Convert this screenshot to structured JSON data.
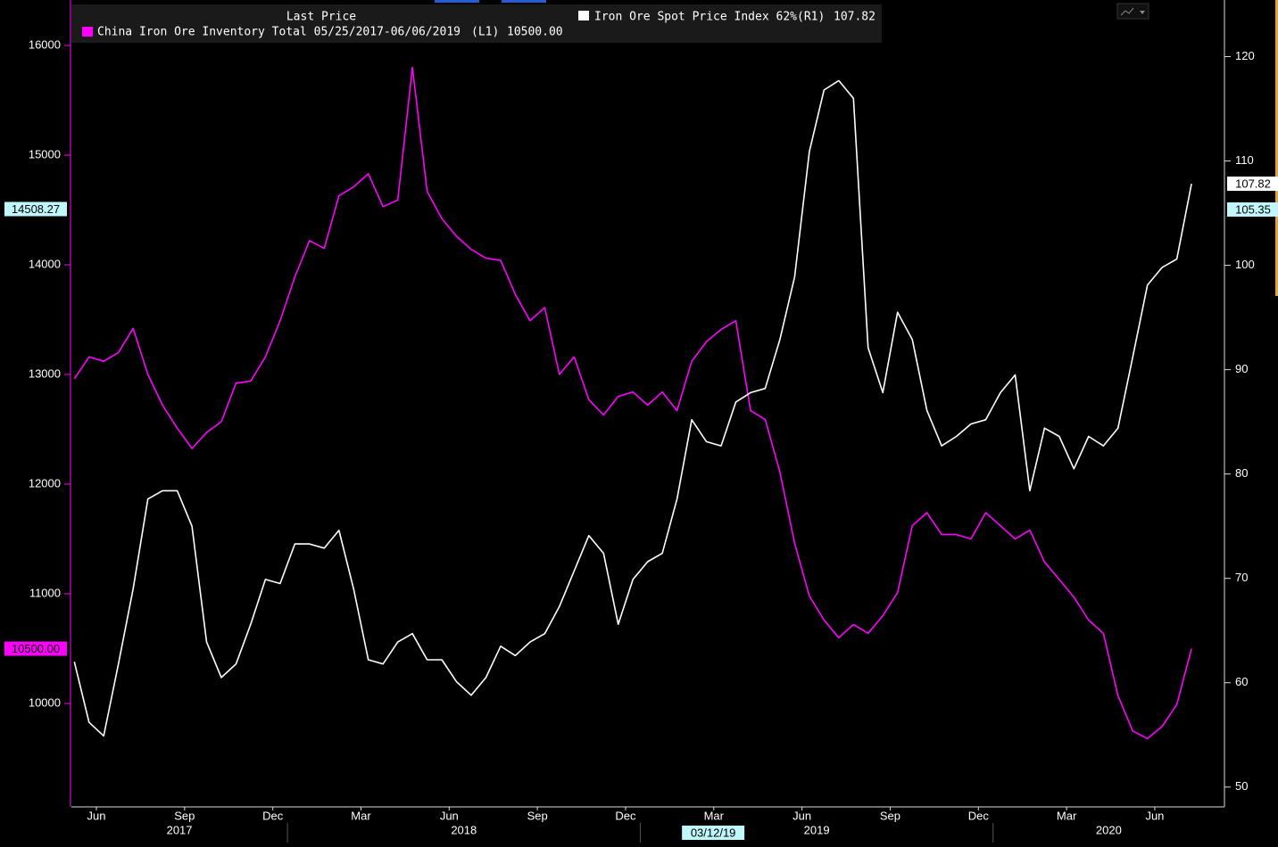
{
  "chart_data": {
    "type": "line",
    "legend_header": "Last Price",
    "legend": [
      {
        "name": "China Iron Ore Inventory Total 05/25/2017-06/06/2019",
        "axis_label": "(L1)",
        "last_label": "10500.00"
      },
      {
        "name": "Iron Ore Spot Price Index 62%",
        "axis_label": "(R1)",
        "last_label": "107.82"
      }
    ],
    "x": [
      4.75,
      5.25,
      5.75,
      6.25,
      6.75,
      7.25,
      7.75,
      8.25,
      8.75,
      9.25,
      9.75,
      10.25,
      10.75,
      11.25,
      11.75,
      12.25,
      12.75,
      13.25,
      13.75,
      14.25,
      14.75,
      15.25,
      15.75,
      16.25,
      16.75,
      17.25,
      17.75,
      18.25,
      18.75,
      19.25,
      19.75,
      20.25,
      20.75,
      21.25,
      21.75,
      22.25,
      22.75,
      23.25,
      23.75,
      24.25,
      24.75,
      25.25,
      25.75,
      26.25,
      26.75,
      27.25,
      27.75,
      28.25,
      28.75,
      29.25,
      29.75,
      30.25,
      30.75,
      31.25,
      31.75,
      32.25,
      32.75,
      33.25,
      33.75,
      34.25,
      34.75,
      35.25,
      35.75,
      36.25,
      36.75,
      37.25,
      37.75,
      38.25,
      38.75,
      39.25,
      39.75,
      40.25,
      40.75,
      41.25,
      41.75,
      42.25,
      42.75
    ],
    "xlim": [
      4.65,
      43.87
    ],
    "xticks": [
      {
        "value": 5.5,
        "label": "Jun"
      },
      {
        "value": 8.5,
        "label": "Sep"
      },
      {
        "value": 11.5,
        "label": "Dec"
      },
      {
        "value": 14.5,
        "label": "Mar"
      },
      {
        "value": 17.5,
        "label": "Jun"
      },
      {
        "value": 20.5,
        "label": "Sep"
      },
      {
        "value": 23.5,
        "label": "Dec"
      },
      {
        "value": 26.5,
        "label": "Mar"
      },
      {
        "value": 29.5,
        "label": "Jun"
      },
      {
        "value": 32.5,
        "label": "Sep"
      },
      {
        "value": 35.5,
        "label": "Dec"
      },
      {
        "value": 38.5,
        "label": "Mar"
      },
      {
        "value": 41.5,
        "label": "Jun"
      }
    ],
    "years": [
      {
        "value": 0,
        "label": "2017"
      },
      {
        "value": 12,
        "label": "2018"
      },
      {
        "value": 24,
        "label": "2019"
      },
      {
        "value": 36,
        "label": "2020"
      }
    ],
    "ylim": [
      9057,
      16374
    ],
    "yticks": [
      10000,
      11000,
      12000,
      13000,
      14000,
      15000,
      16000
    ],
    "y2lim": [
      48.1,
      125
    ],
    "y2ticks": [
      50,
      60,
      70,
      80,
      90,
      100,
      110,
      120
    ],
    "series": [
      {
        "name": "China Iron Ore Inventory Total 05/25/2017-06/06/2019",
        "color": "#ff00ff",
        "axis": "y",
        "values": [
          12960,
          13160,
          13120,
          13200,
          13420,
          13000,
          12720,
          12510,
          12325,
          12470,
          12570,
          12920,
          12940,
          13160,
          13490,
          13890,
          14220,
          14150,
          14630,
          14710,
          14830,
          14530,
          14590,
          15800,
          14670,
          14420,
          14260,
          14140,
          14060,
          14040,
          13730,
          13490,
          13610,
          13000,
          13160,
          12770,
          12630,
          12800,
          12840,
          12720,
          12840,
          12670,
          13120,
          13300,
          13410,
          13490,
          12670,
          12590,
          12110,
          11460,
          10980,
          10760,
          10600,
          10720,
          10640,
          10800,
          11010,
          11620,
          11740,
          11540,
          11540,
          11500,
          11740,
          11620,
          11500,
          11580,
          11290,
          11130,
          10970,
          10760,
          10640,
          10070,
          9750,
          9680,
          9790,
          9990,
          10500
        ]
      },
      {
        "name": "Iron Ore Spot Price Index 62%",
        "color": "#ffffff",
        "axis": "y2",
        "values": [
          62,
          56.2,
          54.9,
          61.8,
          69,
          77.6,
          78.4,
          78.4,
          75,
          63.9,
          60.5,
          61.8,
          65.6,
          69.9,
          69.5,
          73.3,
          73.3,
          72.9,
          74.6,
          69,
          62.2,
          61.8,
          63.9,
          64.7,
          62.2,
          62.2,
          60.1,
          58.8,
          60.5,
          63.5,
          62.6,
          63.9,
          64.7,
          67.3,
          70.7,
          74.1,
          72.4,
          65.6,
          69.9,
          71.6,
          72.4,
          77.6,
          85.2,
          83.1,
          82.7,
          86.9,
          87.8,
          88.2,
          92.9,
          98.9,
          110.9,
          116.8,
          117.7,
          116,
          92.1,
          87.8,
          95.5,
          92.9,
          86.1,
          82.7,
          83.6,
          84.8,
          85.2,
          87.8,
          89.5,
          78.4,
          84.4,
          83.6,
          80.5,
          83.6,
          82.7,
          84.4,
          91.2,
          98.1,
          99.8,
          100.6,
          107.82
        ]
      }
    ],
    "tags": [
      {
        "value": 14508.27,
        "label": "14508.27",
        "axis": "y",
        "color": "#bff7fb"
      },
      {
        "value": 10500,
        "label": "10500.00",
        "axis": "y",
        "color": "#ff00ff"
      },
      {
        "value": 107.82,
        "label": "107.82",
        "axis": "y2",
        "color": "#ffffff"
      },
      {
        "value": 105.35,
        "label": "105.35",
        "axis": "y2",
        "color": "#bff7fb"
      }
    ],
    "cursor_date": {
      "value": 26.48,
      "label": "03/12/19"
    }
  }
}
